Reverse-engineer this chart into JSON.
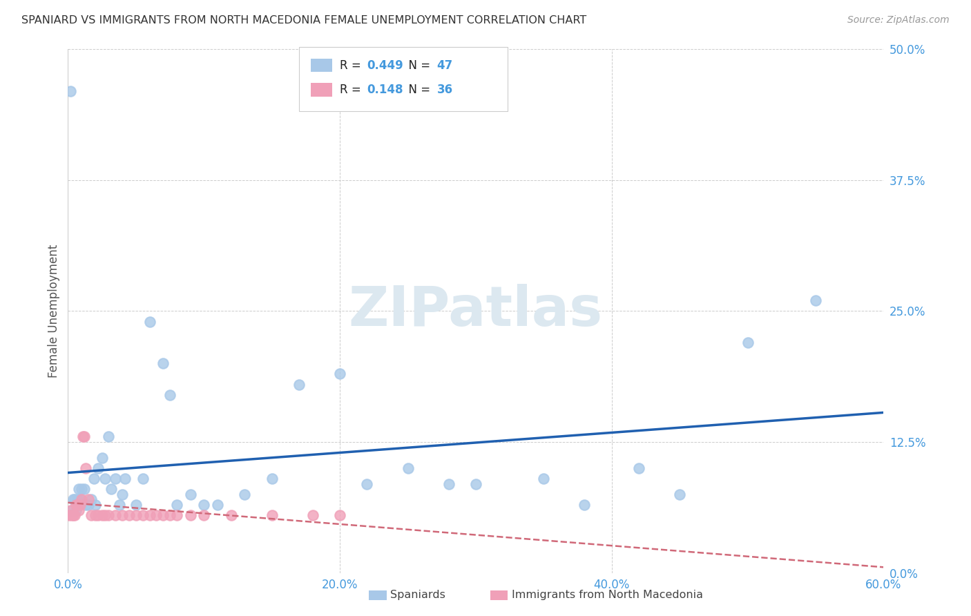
{
  "title": "SPANIARD VS IMMIGRANTS FROM NORTH MACEDONIA FEMALE UNEMPLOYMENT CORRELATION CHART",
  "source": "Source: ZipAtlas.com",
  "ylabel_label": "Female Unemployment",
  "xlim": [
    0.0,
    0.62
  ],
  "ylim": [
    -0.01,
    0.52
  ],
  "plot_xlim": [
    0.0,
    0.6
  ],
  "plot_ylim": [
    0.0,
    0.5
  ],
  "spaniards_x": [
    0.002,
    0.003,
    0.004,
    0.005,
    0.006,
    0.007,
    0.008,
    0.009,
    0.01,
    0.012,
    0.013,
    0.015,
    0.017,
    0.019,
    0.02,
    0.022,
    0.025,
    0.027,
    0.03,
    0.032,
    0.035,
    0.038,
    0.04,
    0.042,
    0.05,
    0.055,
    0.06,
    0.07,
    0.075,
    0.08,
    0.09,
    0.1,
    0.11,
    0.13,
    0.15,
    0.17,
    0.2,
    0.22,
    0.25,
    0.28,
    0.3,
    0.35,
    0.38,
    0.42,
    0.45,
    0.5,
    0.55
  ],
  "spaniards_y": [
    0.46,
    0.06,
    0.07,
    0.07,
    0.06,
    0.07,
    0.08,
    0.07,
    0.08,
    0.08,
    0.065,
    0.065,
    0.07,
    0.09,
    0.065,
    0.1,
    0.11,
    0.09,
    0.13,
    0.08,
    0.09,
    0.065,
    0.075,
    0.09,
    0.065,
    0.09,
    0.24,
    0.2,
    0.17,
    0.065,
    0.075,
    0.065,
    0.065,
    0.075,
    0.09,
    0.18,
    0.19,
    0.085,
    0.1,
    0.085,
    0.085,
    0.09,
    0.065,
    0.1,
    0.075,
    0.22,
    0.26
  ],
  "macedonia_x": [
    0.001,
    0.002,
    0.003,
    0.004,
    0.005,
    0.006,
    0.007,
    0.008,
    0.009,
    0.01,
    0.011,
    0.012,
    0.013,
    0.015,
    0.017,
    0.02,
    0.022,
    0.025,
    0.027,
    0.03,
    0.035,
    0.04,
    0.045,
    0.05,
    0.055,
    0.06,
    0.065,
    0.07,
    0.075,
    0.08,
    0.09,
    0.1,
    0.12,
    0.15,
    0.18,
    0.2
  ],
  "macedonia_y": [
    0.055,
    0.06,
    0.055,
    0.055,
    0.055,
    0.065,
    0.065,
    0.06,
    0.065,
    0.07,
    0.13,
    0.13,
    0.1,
    0.07,
    0.055,
    0.055,
    0.055,
    0.055,
    0.055,
    0.055,
    0.055,
    0.055,
    0.055,
    0.055,
    0.055,
    0.055,
    0.055,
    0.055,
    0.055,
    0.055,
    0.055,
    0.055,
    0.055,
    0.055,
    0.055,
    0.055
  ],
  "R_spaniards": 0.449,
  "N_spaniards": 47,
  "R_macedonia": 0.148,
  "N_macedonia": 36,
  "color_spaniards": "#a8c8e8",
  "color_macedonia": "#f0a0b8",
  "color_line_spaniards": "#2060b0",
  "color_line_macedonia": "#d06878",
  "watermark_text": "ZIPatlas",
  "watermark_color": "#dce8f0",
  "axis_color": "#4499dd",
  "title_color": "#333333",
  "source_color": "#999999",
  "background_color": "#ffffff",
  "grid_color": "#cccccc",
  "legend_label_color": "#333333"
}
